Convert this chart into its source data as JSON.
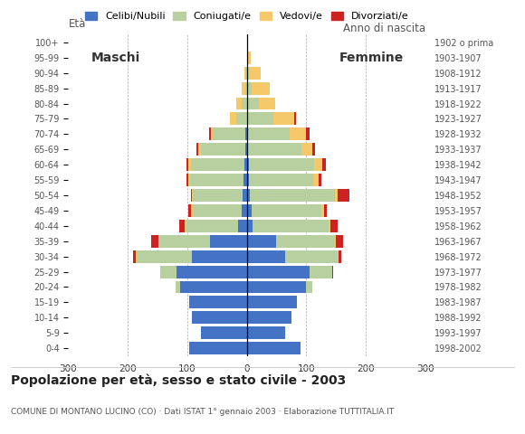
{
  "age_groups": [
    "0-4",
    "5-9",
    "10-14",
    "15-19",
    "20-24",
    "25-29",
    "30-34",
    "35-39",
    "40-44",
    "45-49",
    "50-54",
    "55-59",
    "60-64",
    "65-69",
    "70-74",
    "75-79",
    "80-84",
    "85-89",
    "90-94",
    "95-99",
    "100+"
  ],
  "birth_years": [
    "1998-2002",
    "1993-1997",
    "1988-1992",
    "1983-1987",
    "1978-1982",
    "1973-1977",
    "1968-1972",
    "1963-1967",
    "1958-1962",
    "1953-1957",
    "1948-1952",
    "1943-1947",
    "1938-1942",
    "1933-1937",
    "1928-1932",
    "1923-1927",
    "1918-1922",
    "1913-1917",
    "1908-1912",
    "1903-1907",
    "1902 o prima"
  ],
  "male_celibi": [
    97,
    77,
    92,
    97,
    112,
    118,
    92,
    62,
    15,
    8,
    7,
    5,
    4,
    2,
    2,
    0,
    0,
    0,
    0,
    0,
    0
  ],
  "male_coniugati": [
    0,
    0,
    0,
    0,
    8,
    28,
    93,
    85,
    88,
    83,
    83,
    90,
    90,
    75,
    55,
    18,
    8,
    3,
    2,
    0,
    0
  ],
  "male_vedovi": [
    0,
    0,
    0,
    0,
    0,
    0,
    1,
    1,
    1,
    2,
    2,
    3,
    5,
    5,
    3,
    10,
    10,
    5,
    2,
    0,
    0
  ],
  "male_divorziati": [
    0,
    0,
    0,
    0,
    0,
    0,
    5,
    12,
    10,
    5,
    2,
    4,
    2,
    2,
    4,
    0,
    0,
    0,
    0,
    0,
    0
  ],
  "female_nubili": [
    90,
    65,
    75,
    85,
    100,
    105,
    65,
    50,
    10,
    8,
    5,
    4,
    3,
    2,
    2,
    0,
    0,
    0,
    0,
    0,
    0
  ],
  "female_coniugate": [
    0,
    0,
    0,
    0,
    10,
    38,
    88,
    98,
    128,
    118,
    143,
    108,
    110,
    90,
    70,
    45,
    20,
    8,
    4,
    2,
    0
  ],
  "female_vedove": [
    0,
    0,
    0,
    0,
    0,
    0,
    1,
    2,
    2,
    4,
    4,
    9,
    14,
    18,
    28,
    35,
    28,
    30,
    20,
    5,
    0
  ],
  "female_divorziate": [
    0,
    0,
    0,
    0,
    0,
    2,
    5,
    12,
    12,
    5,
    20,
    5,
    6,
    4,
    5,
    2,
    0,
    0,
    0,
    0,
    0
  ],
  "colors_celibi": "#4472c4",
  "colors_coniugati": "#b8cfa0",
  "colors_vedovi": "#f5c96a",
  "colors_divorziati": "#cc2222",
  "xlim": 300,
  "title": "Popolazione per età, sesso e stato civile - 2003",
  "subtitle": "COMUNE DI MONTANO LUCINO (CO) · Dati ISTAT 1° gennaio 2003 · Elaborazione TUTTITALIA.IT",
  "legend_labels": [
    "Celibi/Nubili",
    "Coniugati/e",
    "Vedovi/e",
    "Divorziati/e"
  ],
  "ylabel_left": "Età",
  "ylabel_right": "Anno di nascita",
  "label_maschi": "Maschi",
  "label_femmine": "Femmine"
}
